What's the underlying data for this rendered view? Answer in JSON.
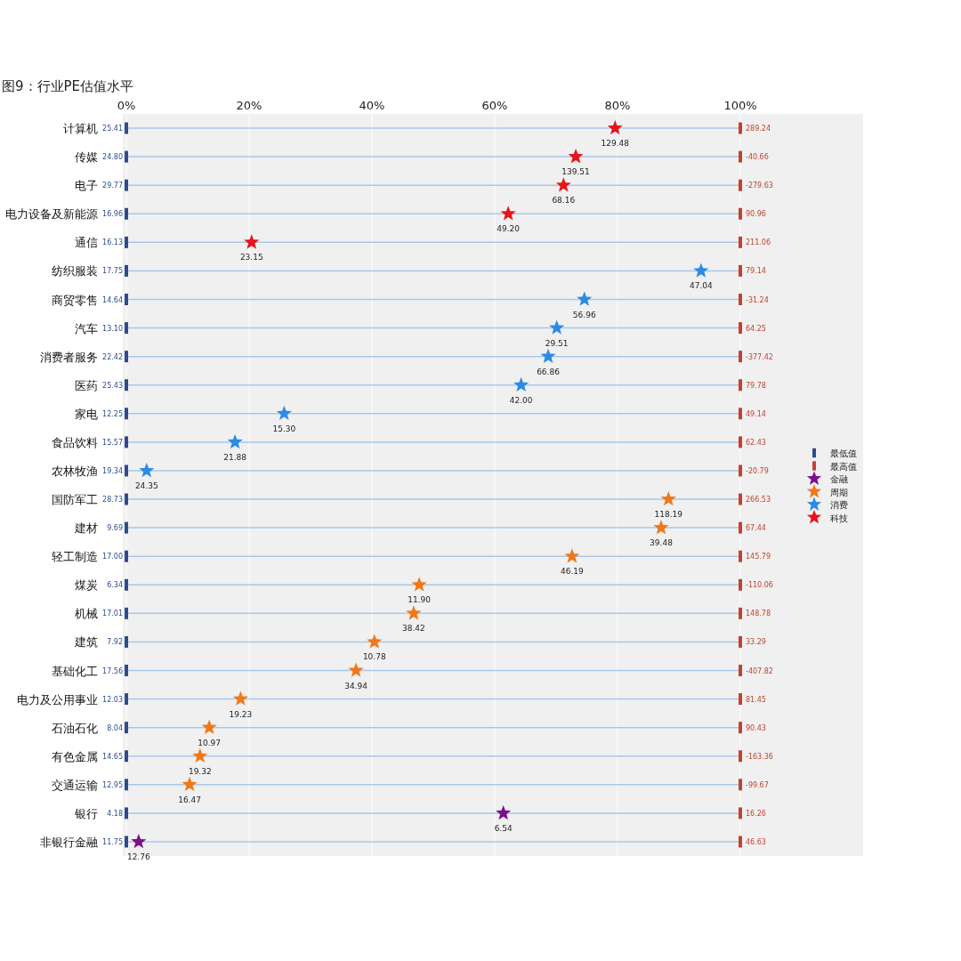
{
  "chart_data": {
    "type": "scatter",
    "orientation": "horizontal",
    "title": "图9：行业PE估值水平",
    "categories": [
      "计算机",
      "传媒",
      "电子",
      "电力设备及新能源",
      "通信",
      "纺织服装",
      "商贸零售",
      "汽车",
      "消费者服务",
      "医药",
      "家电",
      "食品饮料",
      "农林牧渔",
      "国防军工",
      "建材",
      "轻工制造",
      "煤炭",
      "机械",
      "建筑",
      "基础化工",
      "电力及公用事业",
      "石油石化",
      "有色金属",
      "交通运输",
      "银行",
      "非银行金融"
    ],
    "xlim": [
      0,
      120
    ],
    "xticks": [
      {
        "value": 0,
        "label": "0%"
      },
      {
        "value": 20,
        "label": "20%"
      },
      {
        "value": 40,
        "label": "40%"
      },
      {
        "value": 60,
        "label": "60%"
      },
      {
        "value": 80,
        "label": "80%"
      },
      {
        "value": 100,
        "label": "100%"
      }
    ],
    "grid": true,
    "legend": "right",
    "series": [
      {
        "name": "最低值",
        "color": "#2e4c8c",
        "values": [
          0,
          0,
          0,
          0,
          0,
          0,
          0,
          0,
          0,
          0,
          0,
          0,
          0,
          0,
          0,
          0,
          0,
          0,
          0,
          0,
          0,
          0,
          0,
          0,
          0,
          0
        ]
      },
      {
        "name": "最高值",
        "color": "#c0442f",
        "values": [
          100,
          100,
          100,
          100,
          100,
          100,
          100,
          100,
          100,
          100,
          100,
          100,
          100,
          100,
          100,
          100,
          100,
          100,
          100,
          100,
          100,
          100,
          100,
          100,
          100,
          100
        ]
      },
      {
        "name": "金融",
        "color": "#7b0f8e",
        "marker": "star",
        "values": [
          null,
          null,
          null,
          null,
          null,
          null,
          null,
          null,
          null,
          null,
          null,
          null,
          null,
          null,
          null,
          null,
          null,
          null,
          null,
          null,
          null,
          null,
          null,
          null,
          61.4,
          2.0
        ]
      },
      {
        "name": "周期",
        "color": "#f07819",
        "marker": "star",
        "values": [
          null,
          null,
          null,
          null,
          null,
          null,
          null,
          null,
          null,
          null,
          null,
          null,
          null,
          88.3,
          87.1,
          72.6,
          47.7,
          46.8,
          40.4,
          37.4,
          18.6,
          13.5,
          12.0,
          10.3,
          null,
          null
        ]
      },
      {
        "name": "消费",
        "color": "#2b8be8",
        "marker": "star",
        "values": [
          null,
          null,
          null,
          null,
          null,
          93.6,
          74.6,
          70.1,
          68.7,
          64.3,
          25.7,
          17.7,
          3.3,
          null,
          null,
          null,
          null,
          null,
          null,
          null,
          null,
          null,
          null,
          null,
          null,
          null
        ]
      },
      {
        "name": "科技",
        "color": "#e8131b",
        "marker": "star",
        "values": [
          79.6,
          73.2,
          71.2,
          62.2,
          20.4,
          null,
          null,
          null,
          null,
          null,
          null,
          null,
          null,
          null,
          null,
          null,
          null,
          null,
          null,
          null,
          null,
          null,
          null,
          null,
          null,
          null
        ]
      }
    ],
    "annotations": [
      {
        "text": "25.41",
        "x": 0,
        "y": "计算机"
      },
      {
        "text": "24.80",
        "x": 0,
        "y": "传媒"
      },
      {
        "text": "29.77",
        "x": 0,
        "y": "电子"
      },
      {
        "text": "16.96",
        "x": 0,
        "y": "电力设备及新能源"
      },
      {
        "text": "16.13",
        "x": 0,
        "y": "通信"
      },
      {
        "text": "17.75",
        "x": 0,
        "y": "纺织服装"
      },
      {
        "text": "14.64",
        "x": 0,
        "y": "商贸零售"
      },
      {
        "text": "13.10",
        "x": 0,
        "y": "汽车"
      },
      {
        "text": "22.42",
        "x": 0,
        "y": "消费者服务"
      },
      {
        "text": "25.43",
        "x": 0,
        "y": "医药"
      },
      {
        "text": "12.25",
        "x": 0,
        "y": "家电"
      },
      {
        "text": "15.57",
        "x": 0,
        "y": "食品饮料"
      },
      {
        "text": "19.34",
        "x": 0,
        "y": "农林牧渔"
      },
      {
        "text": "28.73",
        "x": 0,
        "y": "国防军工"
      },
      {
        "text": "9.69",
        "x": 0,
        "y": "建材"
      },
      {
        "text": "17.00",
        "x": 0,
        "y": "轻工制造"
      },
      {
        "text": "6.34",
        "x": 0,
        "y": "煤炭"
      },
      {
        "text": "17.01",
        "x": 0,
        "y": "机械"
      },
      {
        "text": "7.92",
        "x": 0,
        "y": "建筑"
      },
      {
        "text": "17.56",
        "x": 0,
        "y": "基础化工"
      },
      {
        "text": "12.03",
        "x": 0,
        "y": "电力及公用事业"
      },
      {
        "text": "8.04",
        "x": 0,
        "y": "石油石化"
      },
      {
        "text": "14.65",
        "x": 0,
        "y": "有色金属"
      },
      {
        "text": "12.95",
        "x": 0,
        "y": "交通运输"
      },
      {
        "text": "4.18",
        "x": 0,
        "y": "银行"
      },
      {
        "text": "11.75",
        "x": 0,
        "y": "非银行金融"
      },
      {
        "text": "289.24",
        "x": 100,
        "y": "计算机"
      },
      {
        "text": "-40.66",
        "x": 100,
        "y": "传媒"
      },
      {
        "text": "-279.63",
        "x": 100,
        "y": "电子"
      },
      {
        "text": "90.96",
        "x": 100,
        "y": "电力设备及新能源"
      },
      {
        "text": "211.06",
        "x": 100,
        "y": "通信"
      },
      {
        "text": "79.14",
        "x": 100,
        "y": "纺织服装"
      },
      {
        "text": "-31.24",
        "x": 100,
        "y": "商贸零售"
      },
      {
        "text": "64.25",
        "x": 100,
        "y": "汽车"
      },
      {
        "text": "-377.42",
        "x": 100,
        "y": "消费者服务"
      },
      {
        "text": "79.78",
        "x": 100,
        "y": "医药"
      },
      {
        "text": "49.14",
        "x": 100,
        "y": "家电"
      },
      {
        "text": "62.43",
        "x": 100,
        "y": "食品饮料"
      },
      {
        "text": "-20.79",
        "x": 100,
        "y": "农林牧渔"
      },
      {
        "text": "266.53",
        "x": 100,
        "y": "国防军工"
      },
      {
        "text": "67.44",
        "x": 100,
        "y": "建材"
      },
      {
        "text": "145.79",
        "x": 100,
        "y": "轻工制造"
      },
      {
        "text": "-110.06",
        "x": 100,
        "y": "煤炭"
      },
      {
        "text": "148.78",
        "x": 100,
        "y": "机械"
      },
      {
        "text": "33.29",
        "x": 100,
        "y": "建筑"
      },
      {
        "text": "-407.82",
        "x": 100,
        "y": "基础化工"
      },
      {
        "text": "81.45",
        "x": 100,
        "y": "电力及公用事业"
      },
      {
        "text": "90.43",
        "x": 100,
        "y": "石油石化"
      },
      {
        "text": "-163.36",
        "x": 100,
        "y": "有色金属"
      },
      {
        "text": "-99.67",
        "x": 100,
        "y": "交通运输"
      },
      {
        "text": "16.26",
        "x": 100,
        "y": "银行"
      },
      {
        "text": "46.63",
        "x": 100,
        "y": "非银行金融"
      },
      {
        "text": "129.48",
        "x": 79.6,
        "y": "计算机"
      },
      {
        "text": "139.51",
        "x": 73.2,
        "y": "传媒"
      },
      {
        "text": "68.16",
        "x": 71.2,
        "y": "电子"
      },
      {
        "text": "49.20",
        "x": 62.2,
        "y": "电力设备及新能源"
      },
      {
        "text": "23.15",
        "x": 20.4,
        "y": "通信"
      },
      {
        "text": "47.04",
        "x": 93.6,
        "y": "纺织服装"
      },
      {
        "text": "56.96",
        "x": 74.6,
        "y": "商贸零售"
      },
      {
        "text": "29.51",
        "x": 70.1,
        "y": "汽车"
      },
      {
        "text": "66.86",
        "x": 68.7,
        "y": "消费者服务"
      },
      {
        "text": "42.00",
        "x": 64.3,
        "y": "医药"
      },
      {
        "text": "15.30",
        "x": 25.7,
        "y": "家电"
      },
      {
        "text": "21.88",
        "x": 17.7,
        "y": "食品饮料"
      },
      {
        "text": "24.35",
        "x": 3.3,
        "y": "农林牧渔"
      },
      {
        "text": "118.19",
        "x": 88.3,
        "y": "国防军工"
      },
      {
        "text": "39.48",
        "x": 87.1,
        "y": "建材"
      },
      {
        "text": "46.19",
        "x": 72.6,
        "y": "轻工制造"
      },
      {
        "text": "11.90",
        "x": 47.7,
        "y": "煤炭"
      },
      {
        "text": "38.42",
        "x": 46.8,
        "y": "机械"
      },
      {
        "text": "10.78",
        "x": 40.4,
        "y": "建筑"
      },
      {
        "text": "34.94",
        "x": 37.4,
        "y": "基础化工"
      },
      {
        "text": "19.23",
        "x": 18.6,
        "y": "电力及公用事业"
      },
      {
        "text": "10.97",
        "x": 13.5,
        "y": "石油石化"
      },
      {
        "text": "19.32",
        "x": 12.0,
        "y": "有色金属"
      },
      {
        "text": "16.47",
        "x": 10.3,
        "y": "交通运输"
      },
      {
        "text": "6.54",
        "x": 61.4,
        "y": "银行"
      },
      {
        "text": "12.76",
        "x": 2.0,
        "y": "非银行金融"
      }
    ]
  }
}
